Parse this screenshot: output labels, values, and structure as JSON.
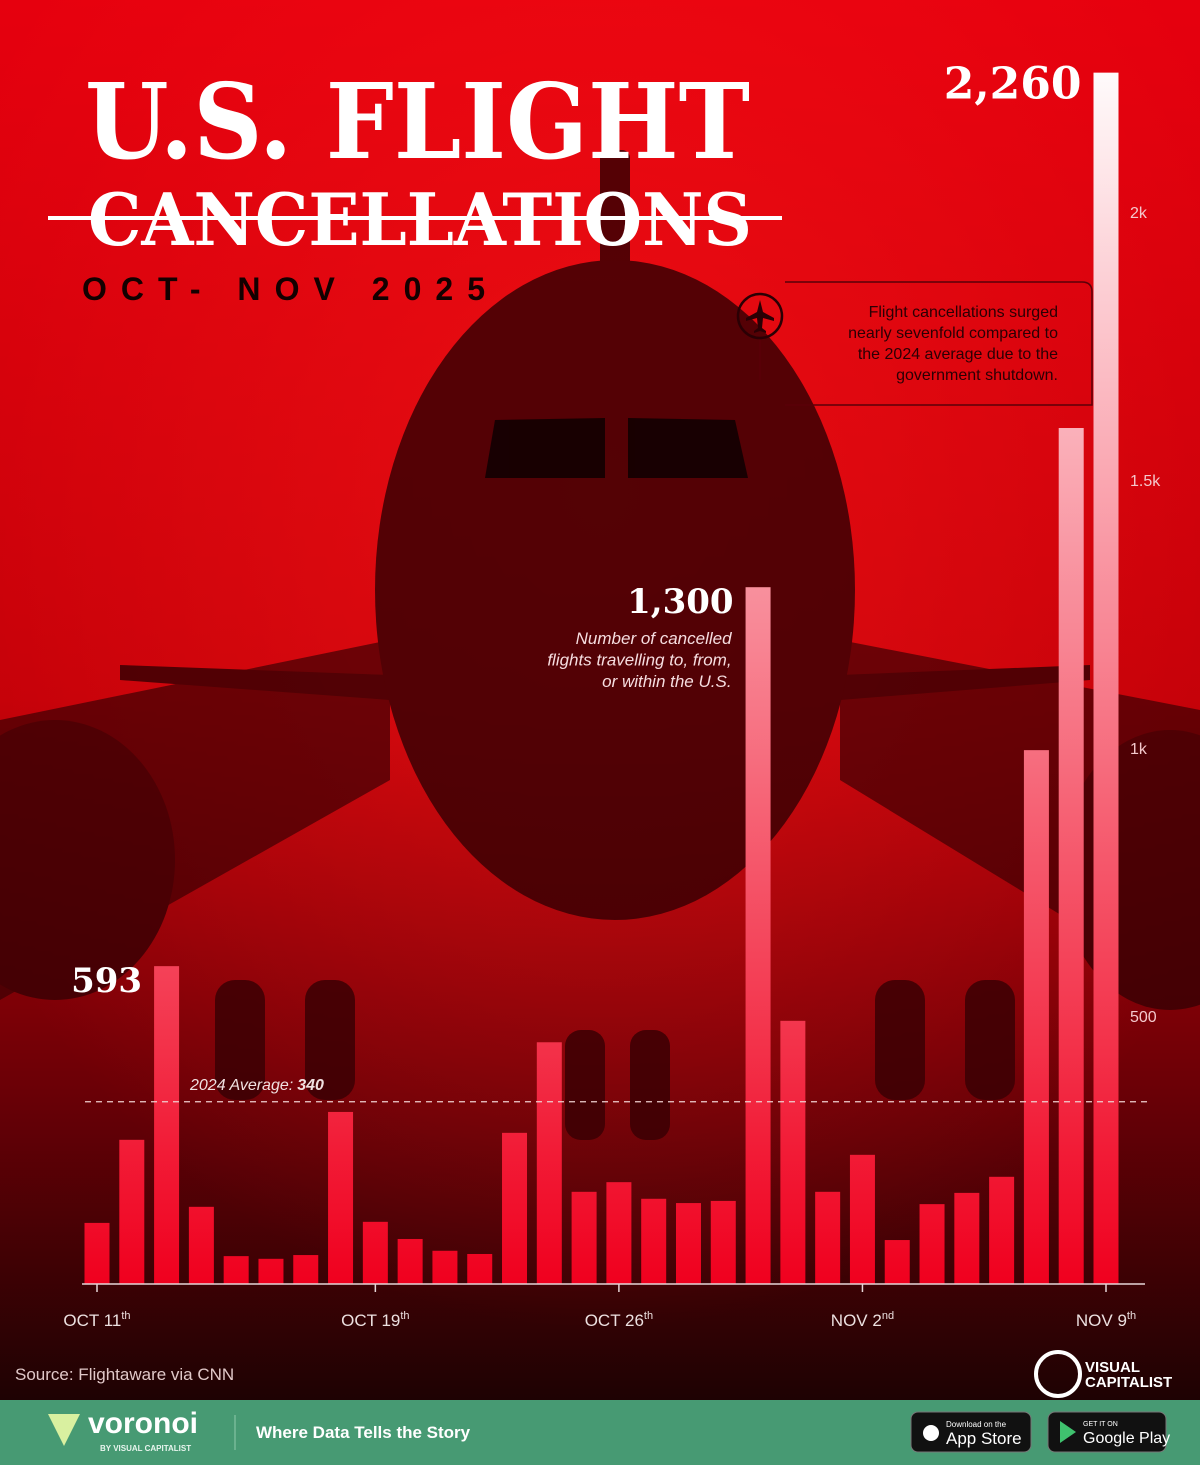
{
  "chart_data": {
    "type": "bar",
    "title": "U.S. FLIGHT",
    "title_strike": "CANCELLATIONS",
    "subtitle": "OCT- NOV 2025",
    "categories": [
      "OCT 11th",
      null,
      null,
      null,
      null,
      null,
      null,
      null,
      "OCT 19th",
      null,
      null,
      null,
      null,
      null,
      null,
      "OCT 26th",
      null,
      null,
      null,
      null,
      null,
      null,
      "NOV 2nd",
      null,
      null,
      null,
      null,
      null,
      null,
      "NOV 9th"
    ],
    "values": [
      114,
      269,
      593,
      144,
      52,
      47,
      54,
      321,
      116,
      84,
      62,
      56,
      282,
      451,
      172,
      190,
      159,
      151,
      155,
      1300,
      491,
      172,
      241,
      82,
      149,
      170,
      200,
      996,
      1597,
      2260
    ],
    "value_labels": [
      null,
      null,
      "593",
      null,
      null,
      null,
      null,
      null,
      null,
      null,
      null,
      null,
      null,
      null,
      null,
      null,
      null,
      null,
      null,
      "1,300",
      null,
      null,
      null,
      null,
      null,
      null,
      null,
      null,
      null,
      "2,260"
    ],
    "color_bottom": "#f0001e",
    "color_top": "#ffffff",
    "ylim": [
      0,
      2300
    ],
    "yticks": [
      500,
      {
        "value": 1000,
        "label": "1k"
      },
      {
        "value": 1500,
        "label": "1.5k"
      },
      {
        "value": 2000,
        "label": "2k"
      }
    ],
    "grid": false,
    "average": {
      "label": "2024 Average:",
      "value": 340
    },
    "note": [
      "Number of cancelled",
      "flights travelling to, from,",
      "or within the U.S."
    ],
    "callout": [
      "Flight cancellations surged",
      "nearly sevenfold compared to",
      "the 2024 average due to the",
      "government shutdown."
    ],
    "source": "Source: Flightaware via CNN"
  },
  "branding": {
    "logo": "voronoi",
    "logo_sub": "BY VISUAL CAPITALIST",
    "tagline": "Where Data Tells the Story",
    "app_store_small": "Download on the",
    "app_store": "App Store",
    "google_small": "GET IT ON",
    "google": "Google Play",
    "vc_top": "VISUAL",
    "vc_bottom": "CAPITALIST"
  }
}
